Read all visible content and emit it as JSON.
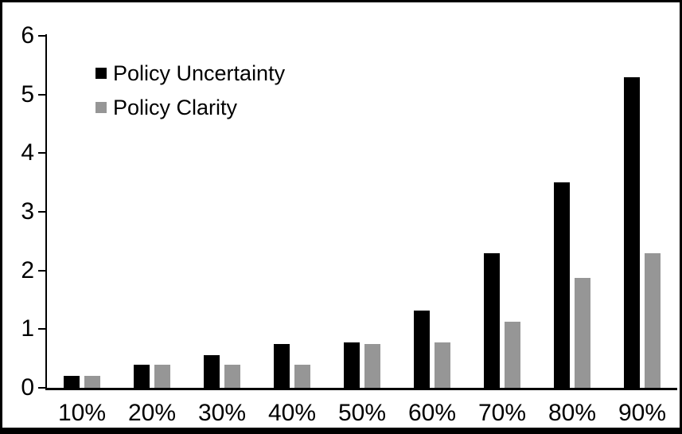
{
  "chart_data": {
    "type": "bar",
    "title": "",
    "categories": [
      "10%",
      "20%",
      "30%",
      "40%",
      "50%",
      "60%",
      "70%",
      "80%",
      "90%"
    ],
    "series": [
      {
        "name": "Policy Uncertainty",
        "color": "#000000",
        "values": [
          0.2,
          0.4,
          0.55,
          0.75,
          0.77,
          1.32,
          2.3,
          3.5,
          5.3
        ]
      },
      {
        "name": "Policy Clarity",
        "color": "#969696",
        "values": [
          0.2,
          0.4,
          0.4,
          0.4,
          0.75,
          0.77,
          1.13,
          1.88,
          2.3
        ]
      }
    ],
    "xlabel": "",
    "ylabel": "",
    "ylim": [
      0,
      6
    ],
    "yticks": [
      0,
      1,
      2,
      3,
      4,
      5,
      6
    ],
    "grid": false,
    "legend_position": "top-left"
  },
  "colors": {
    "background": "#ffffff",
    "frame_border": "#000000",
    "axis": "#000000",
    "text": "#000000"
  }
}
